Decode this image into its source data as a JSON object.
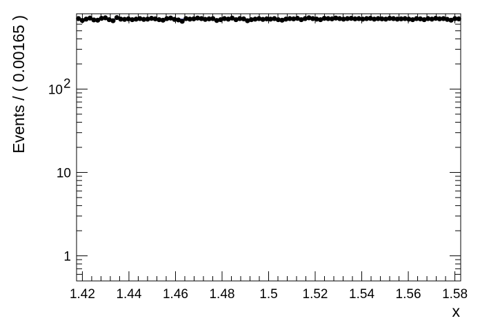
{
  "chart_data": {
    "type": "scatter",
    "title": "",
    "xlabel": "x",
    "ylabel": "Events / ( 0.00165 )",
    "xlim": [
      1.4175,
      1.5825
    ],
    "ylim": [
      0.5,
      800
    ],
    "yscale": "log",
    "grid": false,
    "legend": "none",
    "x_ticks": [
      {
        "value": 1.42,
        "label": "1.42"
      },
      {
        "value": 1.44,
        "label": "1.44"
      },
      {
        "value": 1.46,
        "label": "1.46"
      },
      {
        "value": 1.48,
        "label": "1.48"
      },
      {
        "value": 1.5,
        "label": "1.5"
      },
      {
        "value": 1.52,
        "label": "1.52"
      },
      {
        "value": 1.54,
        "label": "1.54"
      },
      {
        "value": 1.56,
        "label": "1.56"
      },
      {
        "value": 1.58,
        "label": "1.58"
      }
    ],
    "y_ticks": [
      {
        "value": 1,
        "label": "1",
        "exp": ""
      },
      {
        "value": 10,
        "label": "10",
        "exp": ""
      },
      {
        "value": 100,
        "label": "10",
        "exp": "2"
      }
    ],
    "series": [
      {
        "kind": "data-points",
        "color": "#000000",
        "x_start": 1.418325,
        "x_step": 0.00165,
        "values": [
          700,
          665,
          690,
          710,
          675,
          670,
          705,
          715,
          680,
          660,
          720,
          690,
          685,
          695,
          680,
          690,
          700,
          685,
          690,
          705,
          695,
          680,
          670,
          700,
          710,
          685,
          675,
          650,
          700,
          690,
          695,
          710,
          700,
          685,
          695,
          700,
          665,
          680,
          700,
          690,
          710,
          680,
          700,
          695,
          660,
          680,
          690,
          700,
          685,
          695,
          690,
          700,
          680,
          670,
          690,
          700,
          695,
          705,
          680,
          700,
          715,
          700,
          690,
          680,
          705,
          700,
          695,
          710,
          700,
          690,
          700,
          705,
          695,
          700,
          690,
          700,
          705,
          690,
          700,
          695,
          690,
          705,
          700,
          690,
          695,
          700,
          690,
          680,
          700,
          695,
          680,
          700,
          690,
          705,
          695,
          700,
          685,
          670,
          700,
          695
        ]
      },
      {
        "kind": "fit-line",
        "color": "#2233cc",
        "values": [
          690,
          690
        ]
      }
    ]
  }
}
